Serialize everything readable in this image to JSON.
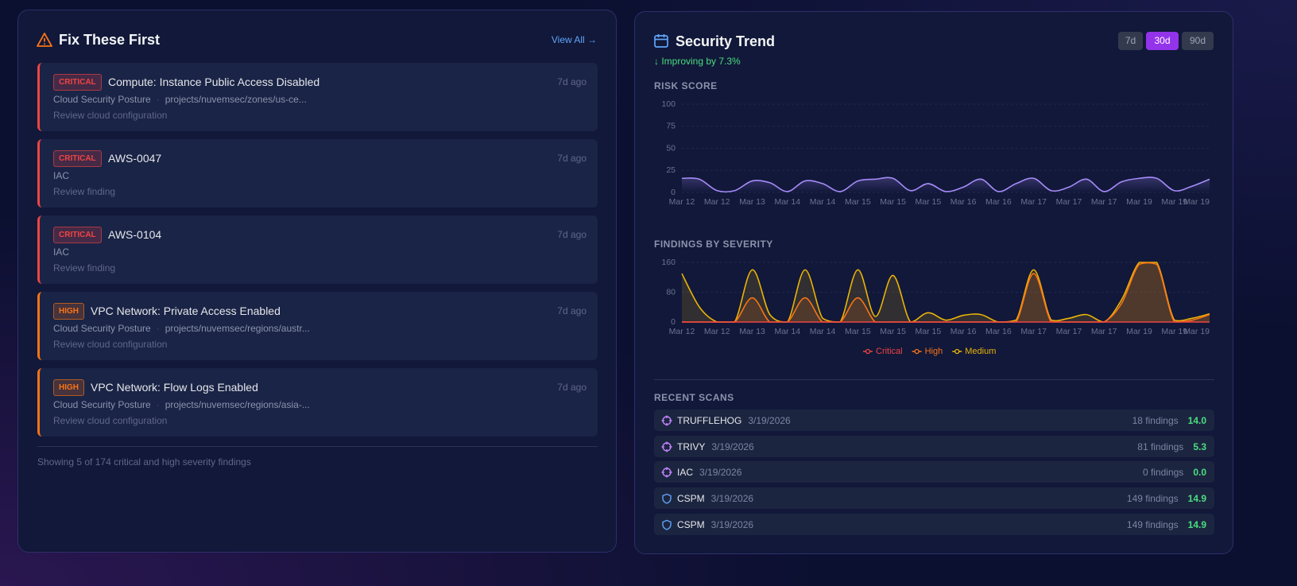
{
  "fix_panel": {
    "title": "Fix These First",
    "view_all": "View All →",
    "items": [
      {
        "severity": "CRITICAL",
        "color": "#ef4444",
        "title": "Compute: Instance Public Access Disabled",
        "source": "Cloud Security Posture",
        "path": "projects/nuvemsec/zones/us-ce...",
        "action": "Review cloud configuration",
        "age": "7d ago"
      },
      {
        "severity": "CRITICAL",
        "color": "#ef4444",
        "title": "AWS-0047",
        "source": "IAC",
        "action": "Review finding",
        "age": "7d ago"
      },
      {
        "severity": "CRITICAL",
        "color": "#ef4444",
        "title": "AWS-0104",
        "source": "IAC",
        "action": "Review finding",
        "age": "7d ago"
      },
      {
        "severity": "HIGH",
        "color": "#f97316",
        "title": "VPC Network: Private Access Enabled",
        "source": "Cloud Security Posture",
        "path": "projects/nuvemsec/regions/austr...",
        "action": "Review cloud configuration",
        "age": "7d ago"
      },
      {
        "severity": "HIGH",
        "color": "#f97316",
        "title": "VPC Network: Flow Logs Enabled",
        "source": "Cloud Security Posture",
        "path": "projects/nuvemsec/regions/asia-...",
        "action": "Review cloud configuration",
        "age": "7d ago"
      }
    ],
    "footer": "Showing 5 of 174 critical and high severity findings"
  },
  "trend_panel": {
    "title": "Security Trend",
    "ranges": [
      "7d",
      "30d",
      "90d"
    ],
    "active_range": "30d",
    "note": "↓ Improving by 7.3%",
    "risk_chart": {
      "type": "line",
      "title": "RISK SCORE",
      "color": "#a78bfa",
      "categories": [
        "Mar 12",
        null,
        "Mar 12",
        null,
        "Mar 13",
        null,
        "Mar 14",
        null,
        "Mar 14",
        null,
        "Mar 15",
        null,
        "Mar 15",
        null,
        "Mar 15",
        null,
        "Mar 16",
        null,
        "Mar 16",
        null,
        "Mar 17",
        null,
        "Mar 17",
        null,
        "Mar 17",
        null,
        "Mar 19",
        null,
        "Mar 19",
        null,
        "Mar 19"
      ],
      "values": [
        16,
        15,
        2,
        2,
        13,
        11,
        1,
        13,
        10,
        1,
        13,
        15,
        16,
        2,
        10,
        1,
        6,
        15,
        1,
        10,
        16,
        2,
        6,
        15,
        1,
        12,
        16,
        16,
        2,
        7,
        15
      ],
      "ylim": [
        0,
        100
      ],
      "yticks": [
        0,
        25,
        50,
        75,
        100
      ],
      "grid": true
    },
    "severity_chart": {
      "type": "area",
      "title": "FINDINGS BY SEVERITY",
      "categories": [
        "Mar 12",
        null,
        "Mar 12",
        null,
        "Mar 13",
        null,
        "Mar 14",
        null,
        "Mar 14",
        null,
        "Mar 15",
        null,
        "Mar 15",
        null,
        "Mar 15",
        null,
        "Mar 16",
        null,
        "Mar 16",
        null,
        "Mar 17",
        null,
        "Mar 17",
        null,
        "Mar 17",
        null,
        "Mar 19",
        null,
        "Mar 19",
        null,
        "Mar 19"
      ],
      "series": [
        {
          "name": "Critical",
          "color": "#ef4444",
          "values": [
            0,
            0,
            0,
            0,
            0,
            0,
            0,
            0,
            0,
            0,
            0,
            0,
            0,
            0,
            0,
            0,
            0,
            0,
            0,
            0,
            0,
            0,
            0,
            0,
            0,
            0,
            0,
            0,
            0,
            0,
            0
          ]
        },
        {
          "name": "High",
          "color": "#f97316",
          "values": [
            0,
            0,
            0,
            0,
            65,
            0,
            0,
            65,
            0,
            0,
            65,
            0,
            0,
            0,
            0,
            0,
            0,
            0,
            0,
            0,
            130,
            0,
            0,
            0,
            0,
            50,
            155,
            155,
            0,
            5,
            20
          ]
        },
        {
          "name": "Medium",
          "color": "#eab308",
          "values": [
            130,
            40,
            0,
            0,
            140,
            20,
            0,
            140,
            10,
            0,
            140,
            15,
            125,
            0,
            25,
            5,
            18,
            20,
            0,
            5,
            140,
            5,
            10,
            20,
            0,
            60,
            160,
            160,
            5,
            10,
            22
          ]
        }
      ],
      "ylim": [
        0,
        160
      ],
      "yticks": [
        0,
        80,
        160
      ],
      "grid": true
    },
    "recent_scans": {
      "title": "RECENT SCANS",
      "scans": [
        {
          "icon": "target",
          "tool": "TRUFFLEHOG",
          "date": "3/19/2026",
          "findings": "18 findings",
          "score": "14.0"
        },
        {
          "icon": "target",
          "tool": "TRIVY",
          "date": "3/19/2026",
          "findings": "81 findings",
          "score": "5.3"
        },
        {
          "icon": "target",
          "tool": "IAC",
          "date": "3/19/2026",
          "findings": "0 findings",
          "score": "0.0"
        },
        {
          "icon": "shield",
          "tool": "CSPM",
          "date": "3/19/2026",
          "findings": "149 findings",
          "score": "14.9"
        },
        {
          "icon": "shield",
          "tool": "CSPM",
          "date": "3/19/2026",
          "findings": "149 findings",
          "score": "14.9"
        }
      ]
    }
  }
}
